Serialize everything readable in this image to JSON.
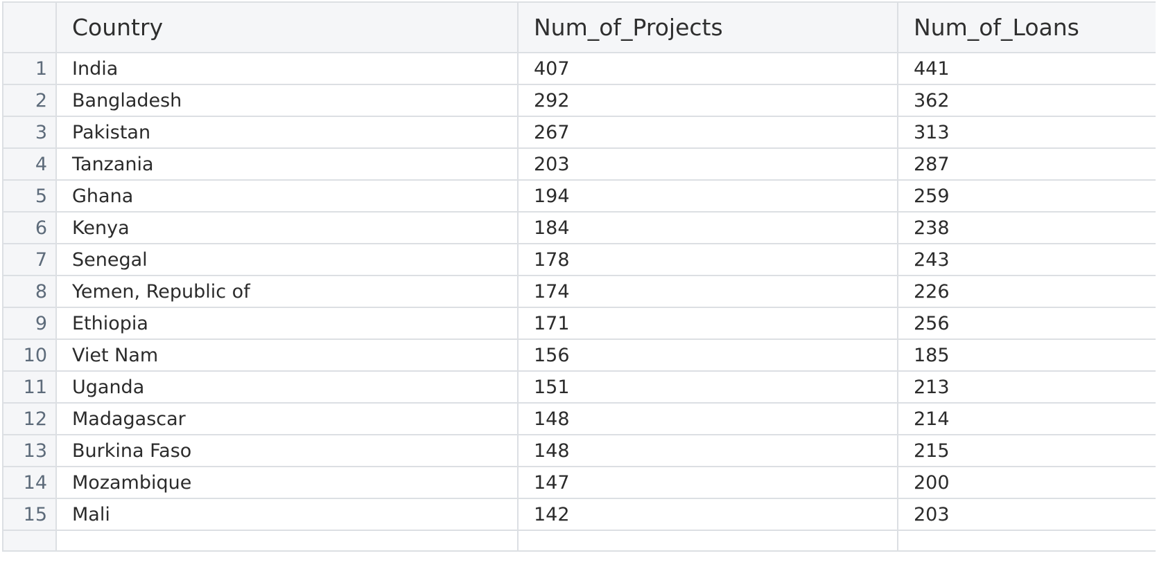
{
  "grid": {
    "columns": [
      "Country",
      "Num_of_Projects",
      "Num_of_Loans"
    ],
    "rows": [
      {
        "index": "1",
        "country": "India",
        "projects": "407",
        "loans": "441"
      },
      {
        "index": "2",
        "country": "Bangladesh",
        "projects": "292",
        "loans": "362"
      },
      {
        "index": "3",
        "country": "Pakistan",
        "projects": "267",
        "loans": "313"
      },
      {
        "index": "4",
        "country": "Tanzania",
        "projects": "203",
        "loans": "287"
      },
      {
        "index": "5",
        "country": "Ghana",
        "projects": "194",
        "loans": "259"
      },
      {
        "index": "6",
        "country": "Kenya",
        "projects": "184",
        "loans": "238"
      },
      {
        "index": "7",
        "country": "Senegal",
        "projects": "178",
        "loans": "243"
      },
      {
        "index": "8",
        "country": "Yemen, Republic of",
        "projects": "174",
        "loans": "226"
      },
      {
        "index": "9",
        "country": "Ethiopia",
        "projects": "171",
        "loans": "256"
      },
      {
        "index": "10",
        "country": "Viet Nam",
        "projects": "156",
        "loans": "185"
      },
      {
        "index": "11",
        "country": "Uganda",
        "projects": "151",
        "loans": "213"
      },
      {
        "index": "12",
        "country": "Madagascar",
        "projects": "148",
        "loans": "214"
      },
      {
        "index": "13",
        "country": "Burkina Faso",
        "projects": "148",
        "loans": "215"
      },
      {
        "index": "14",
        "country": "Mozambique",
        "projects": "147",
        "loans": "200"
      },
      {
        "index": "15",
        "country": "Mali",
        "projects": "142",
        "loans": "203"
      }
    ]
  },
  "colors": {
    "header_bg": "#f5f6f8",
    "grid_line": "#dcdfe3",
    "text": "#2b2b2b",
    "index_text": "#5d6b7a"
  }
}
